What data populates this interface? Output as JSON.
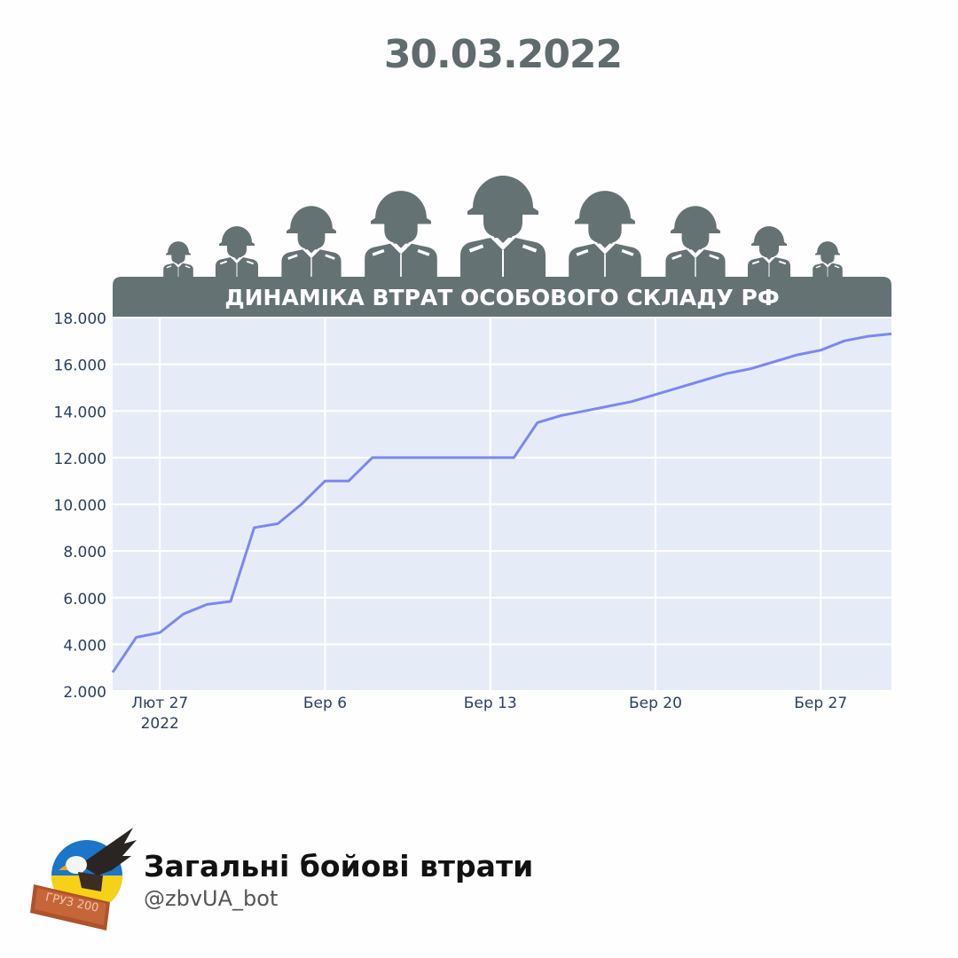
{
  "header": {
    "date": "30.03.2022"
  },
  "colors": {
    "banner": "#647274",
    "plot_bg": "#e6ecf7",
    "line": "#7b88f0",
    "grid": "#ffffff"
  },
  "chart_data": {
    "type": "line",
    "title": "ДИНАМІКА ВТРАТ ОСОБОВОГО СКЛАДУ РФ",
    "xlabel": "",
    "ylabel": "",
    "grid": true,
    "x_range": [
      "2022-02-25",
      "2022-03-30"
    ],
    "ylim": [
      2000,
      18000
    ],
    "y_ticks": [
      2000,
      4000,
      6000,
      8000,
      10000,
      12000,
      14000,
      16000,
      18000
    ],
    "y_tick_labels": [
      "2.000",
      "4.000",
      "6.000",
      "8.000",
      "10.000",
      "12.000",
      "14.000",
      "16.000",
      "18.000"
    ],
    "x_ticks": [
      {
        "date": "2022-02-27",
        "label": "Лют 27",
        "sublabel": "2022"
      },
      {
        "date": "2022-03-06",
        "label": "Бер 6",
        "sublabel": ""
      },
      {
        "date": "2022-03-13",
        "label": "Бер 13",
        "sublabel": ""
      },
      {
        "date": "2022-03-20",
        "label": "Бер 20",
        "sublabel": ""
      },
      {
        "date": "2022-03-27",
        "label": "Бер 27",
        "sublabel": ""
      }
    ],
    "series": [
      {
        "x": [
          "2022-02-25",
          "2022-02-26",
          "2022-02-27",
          "2022-02-28",
          "2022-03-01",
          "2022-03-02",
          "2022-03-03",
          "2022-03-04",
          "2022-03-05",
          "2022-03-06",
          "2022-03-07",
          "2022-03-08",
          "2022-03-09",
          "2022-03-10",
          "2022-03-11",
          "2022-03-12",
          "2022-03-13",
          "2022-03-14",
          "2022-03-15",
          "2022-03-16",
          "2022-03-17",
          "2022-03-18",
          "2022-03-19",
          "2022-03-20",
          "2022-03-21",
          "2022-03-22",
          "2022-03-23",
          "2022-03-24",
          "2022-03-25",
          "2022-03-26",
          "2022-03-27",
          "2022-03-28",
          "2022-03-29",
          "2022-03-30"
        ],
        "y": [
          2800,
          4300,
          4500,
          5300,
          5710,
          5840,
          9000,
          9166,
          10000,
          11000,
          11000,
          12000,
          12000,
          12000,
          12000,
          12000,
          12000,
          12000,
          13500,
          13800,
          14000,
          14200,
          14400,
          14700,
          15000,
          15300,
          15600,
          15800,
          16100,
          16400,
          16600,
          17000,
          17200,
          17300
        ]
      }
    ]
  },
  "footer": {
    "title": "Загальні бойові втрати",
    "handle": "@zbvUA_bot",
    "logo_text": "ГРУЗ 200"
  }
}
